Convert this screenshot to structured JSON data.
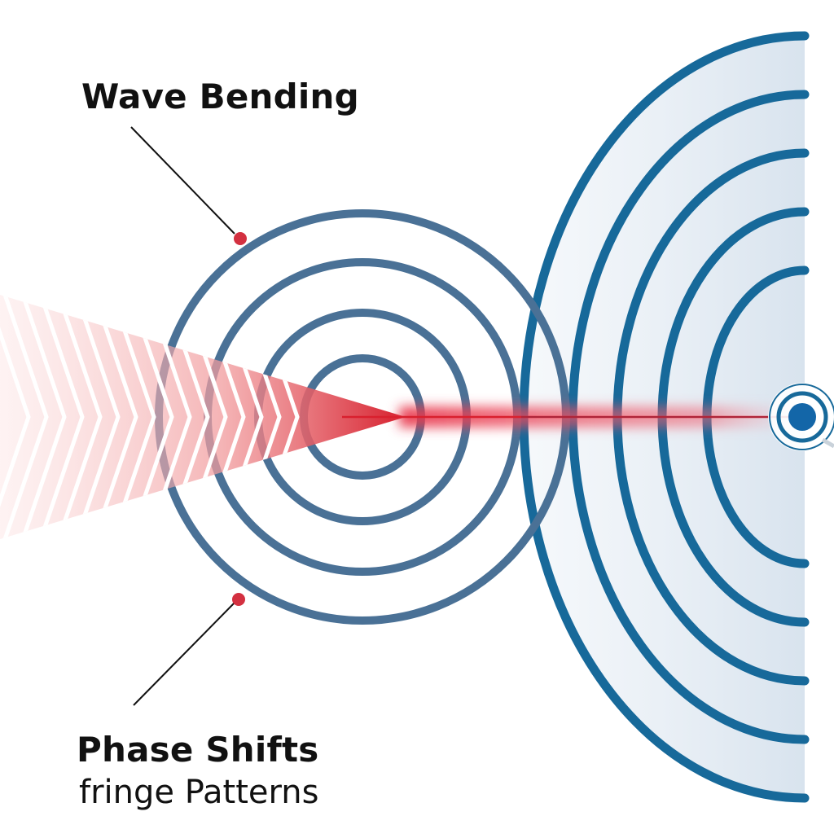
{
  "labels": {
    "wave_bending": "Wave Bending",
    "phase_shifts": "Phase Shifts",
    "fringe_patterns": "fringe Patterns"
  },
  "colors": {
    "background": "#ffffff",
    "concentric_ring": "#4a7196",
    "outer_arc": "#17699a",
    "outer_fill": "#dde6ef",
    "beam_red": "#d9202e",
    "beam_pink": "#f09a9a",
    "marker_dot": "#d33040",
    "leader_line": "#111111",
    "source_dot": "#1366a8"
  },
  "icons": {
    "source": "target-source-icon",
    "marker": "red-dot-marker-icon"
  }
}
